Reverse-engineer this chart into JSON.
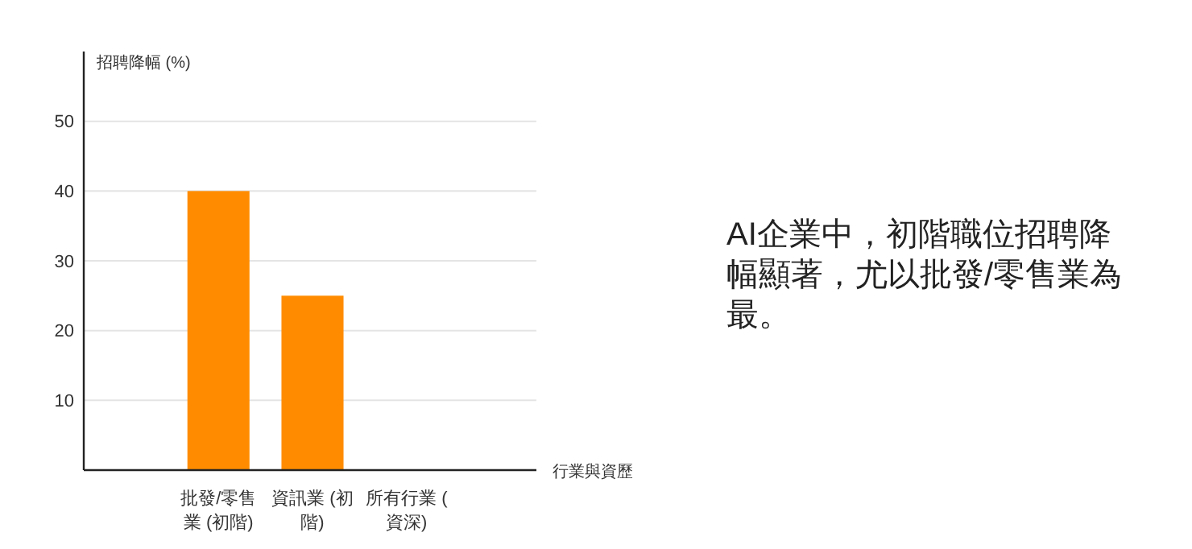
{
  "chart_data": {
    "type": "bar",
    "ylabel": "招聘降幅 (%)",
    "xlabel": "行業與資歷",
    "categories": [
      "批發/零售業 (初階)",
      "資訊業 (初階)",
      "所有行業 (資深)"
    ],
    "values": [
      40,
      25,
      0
    ],
    "color": "#ff8c00",
    "ylim": [
      0,
      60
    ],
    "yticks": [
      10,
      20,
      30,
      40,
      50
    ],
    "grid": "y",
    "annotations": [
      "AI企業中，初階職位招聘降幅顯著，尤以批發/零售業為最。"
    ]
  }
}
